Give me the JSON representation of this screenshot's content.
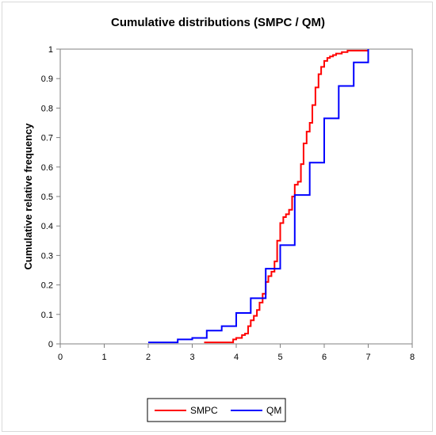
{
  "chart_data": {
    "type": "line",
    "step": true,
    "title": "Cumulative distributions (SMPC / QM)",
    "xlabel": "",
    "ylabel": "Cumulative relative frequency",
    "xlim": [
      0,
      8
    ],
    "ylim": [
      0,
      1
    ],
    "x_ticks": [
      "0",
      "1",
      "2",
      "3",
      "4",
      "5",
      "6",
      "7",
      "8"
    ],
    "y_ticks": [
      "0",
      "0.1",
      "0.2",
      "0.3",
      "0.4",
      "0.5",
      "0.6",
      "0.7",
      "0.8",
      "0.9",
      "1"
    ],
    "grid": false,
    "legend_position": "bottom",
    "plot_border_color": "#808080",
    "series": [
      {
        "name": "SMPC",
        "color": "#ff0000",
        "x": [
          3.27,
          3.33,
          3.4,
          3.47,
          3.53,
          3.6,
          3.67,
          3.73,
          3.8,
          3.87,
          3.93,
          4.0,
          4.07,
          4.13,
          4.2,
          4.27,
          4.33,
          4.4,
          4.47,
          4.53,
          4.6,
          4.67,
          4.73,
          4.8,
          4.87,
          4.93,
          5.0,
          5.07,
          5.13,
          5.2,
          5.27,
          5.33,
          5.4,
          5.47,
          5.53,
          5.6,
          5.67,
          5.73,
          5.8,
          5.87,
          5.93,
          6.0,
          6.07,
          6.13,
          6.2,
          6.27,
          6.33,
          6.4,
          6.47,
          6.53,
          6.6,
          6.67,
          6.73,
          6.8,
          6.87,
          6.93,
          7.0
        ],
        "y": [
          0.005,
          0.005,
          0.005,
          0.005,
          0.005,
          0.005,
          0.005,
          0.005,
          0.005,
          0.005,
          0.015,
          0.02,
          0.02,
          0.03,
          0.035,
          0.06,
          0.08,
          0.095,
          0.115,
          0.14,
          0.17,
          0.21,
          0.23,
          0.245,
          0.28,
          0.35,
          0.41,
          0.43,
          0.44,
          0.455,
          0.5,
          0.54,
          0.55,
          0.61,
          0.68,
          0.72,
          0.75,
          0.81,
          0.87,
          0.915,
          0.94,
          0.96,
          0.97,
          0.975,
          0.98,
          0.985,
          0.985,
          0.99,
          0.99,
          0.995,
          0.995,
          0.995,
          0.995,
          0.995,
          0.995,
          0.995,
          1.0
        ]
      },
      {
        "name": "QM",
        "color": "#0000ff",
        "x": [
          2.0,
          2.67,
          3.0,
          3.33,
          3.67,
          4.0,
          4.33,
          4.67,
          5.0,
          5.33,
          5.67,
          6.0,
          6.33,
          6.67,
          7.0
        ],
        "y": [
          0.005,
          0.015,
          0.02,
          0.045,
          0.06,
          0.105,
          0.155,
          0.255,
          0.335,
          0.505,
          0.615,
          0.765,
          0.875,
          0.955,
          1.0
        ]
      }
    ]
  }
}
